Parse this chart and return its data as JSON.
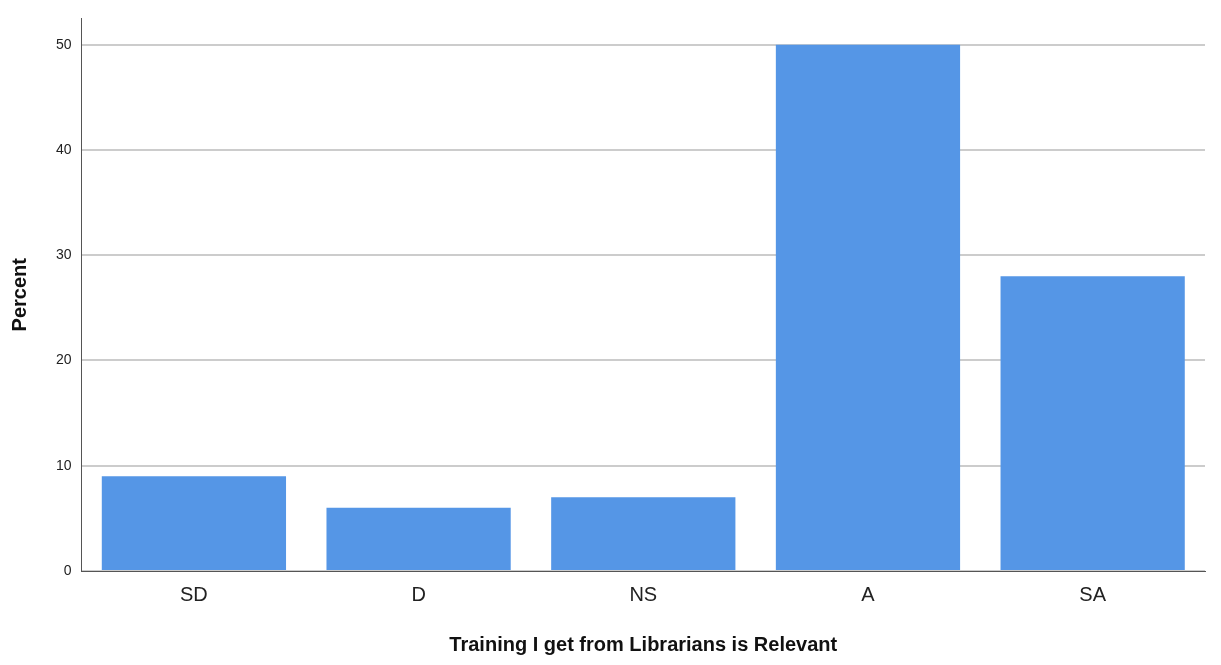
{
  "chart_data": {
    "type": "bar",
    "xlabel": "Training I get from Librarians is Relevant",
    "ylabel": "Percent",
    "categories": [
      "SD",
      "D",
      "NS",
      "A",
      "SA"
    ],
    "values": [
      9,
      6,
      7,
      50,
      28
    ],
    "color": "#5596e6",
    "ylim": [
      0,
      52.5
    ],
    "yticks": [
      0,
      10,
      20,
      30,
      40,
      50
    ],
    "grid": "y"
  }
}
